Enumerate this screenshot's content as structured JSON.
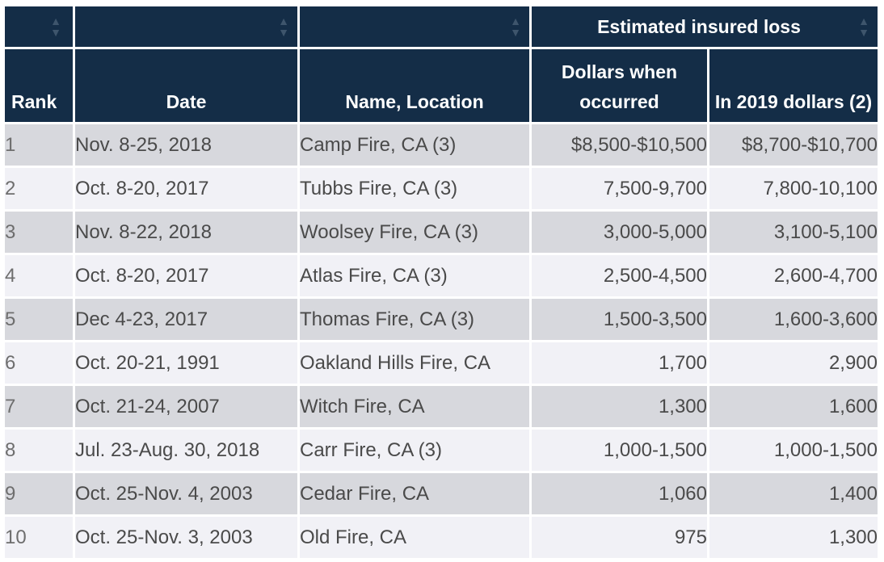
{
  "table": {
    "group_header": "Estimated insured loss",
    "columns": {
      "rank": "Rank",
      "date": "Date",
      "name": "Name, Location",
      "dollars_occurred": "Dollars when occurred",
      "dollars_2019": "In 2019 dollars (2)"
    },
    "rows": [
      {
        "rank": "1",
        "date": "Nov. 8-25, 2018",
        "name": "Camp Fire, CA (3)",
        "occurred": "$8,500-$10,500",
        "in2019": "$8,700-$10,700"
      },
      {
        "rank": "2",
        "date": "Oct. 8-20, 2017",
        "name": "Tubbs Fire, CA (3)",
        "occurred": "7,500-9,700",
        "in2019": "7,800-10,100"
      },
      {
        "rank": "3",
        "date": "Nov. 8-22, 2018",
        "name": "Woolsey Fire, CA (3)",
        "occurred": "3,000-5,000",
        "in2019": "3,100-5,100"
      },
      {
        "rank": "4",
        "date": "Oct. 8-20, 2017",
        "name": "Atlas Fire, CA (3)",
        "occurred": "2,500-4,500",
        "in2019": "2,600-4,700"
      },
      {
        "rank": "5",
        "date": "Dec 4-23, 2017",
        "name": "Thomas Fire, CA (3)",
        "occurred": "1,500-3,500",
        "in2019": "1,600-3,600"
      },
      {
        "rank": "6",
        "date": "Oct. 20-21, 1991",
        "name": "Oakland Hills Fire, CA",
        "occurred": "1,700",
        "in2019": "2,900"
      },
      {
        "rank": "7",
        "date": "Oct. 21-24, 2007",
        "name": "Witch Fire, CA",
        "occurred": "1,300",
        "in2019": "1,600"
      },
      {
        "rank": "8",
        "date": "Jul. 23-Aug. 30, 2018",
        "name": "Carr Fire, CA (3)",
        "occurred": "1,000-1,500",
        "in2019": "1,000-1,500"
      },
      {
        "rank": "9",
        "date": "Oct. 25-Nov. 4, 2003",
        "name": "Cedar Fire, CA",
        "occurred": "1,060",
        "in2019": "1,400"
      },
      {
        "rank": "10",
        "date": "Oct. 25-Nov. 3, 2003",
        "name": "Old Fire, CA",
        "occurred": "975",
        "in2019": "1,300"
      }
    ]
  },
  "icons": {
    "sort": "sort-arrows-icon"
  },
  "colors": {
    "header_bg": "#142d47",
    "row_odd": "#d7d8dd",
    "row_even": "#f1f1f6"
  }
}
